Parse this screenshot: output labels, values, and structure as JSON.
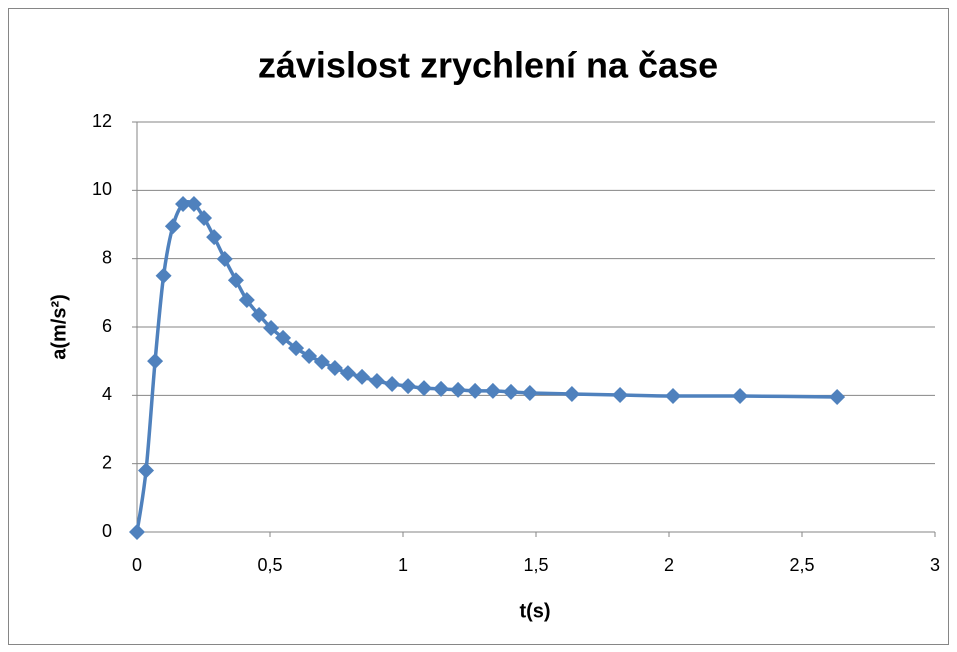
{
  "chart_data": {
    "type": "line",
    "title": "závislost zrychlení na čase",
    "xlabel": "t(s)",
    "ylabel": "a(m/s²)",
    "x": [
      0,
      0.034,
      0.068,
      0.1,
      0.135,
      0.173,
      0.214,
      0.252,
      0.29,
      0.33,
      0.372,
      0.413,
      0.459,
      0.504,
      0.549,
      0.598,
      0.647,
      0.695,
      0.744,
      0.793,
      0.846,
      0.902,
      0.959,
      1.019,
      1.079,
      1.143,
      1.207,
      1.271,
      1.338,
      1.406,
      1.477,
      1.635,
      1.816,
      2.015,
      2.267,
      2.632
    ],
    "series": [
      {
        "color": "#4f81bd",
        "values": [
          0,
          1.8,
          5.0,
          7.5,
          8.95,
          9.6,
          9.6,
          9.19,
          8.63,
          7.99,
          7.37,
          6.79,
          6.35,
          5.97,
          5.68,
          5.38,
          5.15,
          4.98,
          4.8,
          4.65,
          4.54,
          4.42,
          4.33,
          4.27,
          4.21,
          4.19,
          4.16,
          4.13,
          4.13,
          4.1,
          4.07,
          4.04,
          4.01,
          3.98,
          3.98,
          3.95
        ]
      }
    ],
    "xlim": [
      0,
      3
    ],
    "xticks": [
      0,
      {
        "value": 0.5,
        "label": "0,5"
      },
      1,
      {
        "value": 1.5,
        "label": "1,5"
      },
      2,
      {
        "value": 2.5,
        "label": "2,5"
      },
      3
    ],
    "ylim": [
      0,
      12
    ],
    "yticks": [
      0,
      2,
      4,
      6,
      8,
      10,
      12
    ],
    "grid": true
  }
}
